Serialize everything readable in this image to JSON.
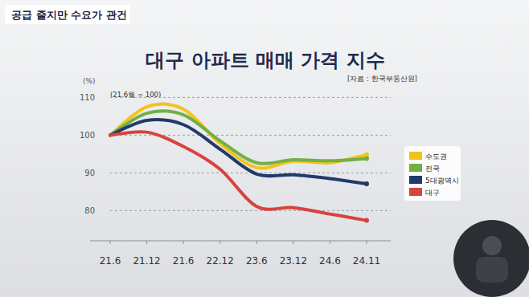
{
  "header": {
    "banner": "공급 줄지만 수요가 관건"
  },
  "chart_data": {
    "type": "line",
    "title": "대구 아파트 매매 가격 지수",
    "source": "[자료 : 한국부동산원]",
    "y_label": "(%)",
    "annotation": "(21.6월 = 100)",
    "categories": [
      "21.6",
      "21.12",
      "21.6",
      "22.12",
      "23.6",
      "23.12",
      "24.6",
      "24.11"
    ],
    "series": [
      {
        "name": "수도권",
        "color": "#f3c31c",
        "values": [
          100,
          107.5,
          106.9,
          97.8,
          91.4,
          93.1,
          92.7,
          94.8
        ]
      },
      {
        "name": "전국",
        "color": "#72b045",
        "values": [
          100,
          105.8,
          105.4,
          98.5,
          92.7,
          93.5,
          93.2,
          93.8
        ]
      },
      {
        "name": "5대광역시",
        "color": "#223a6a",
        "values": [
          100,
          103.9,
          102.8,
          96.3,
          89.7,
          89.5,
          88.5,
          87.1
        ]
      },
      {
        "name": "대구",
        "color": "#d7433d",
        "values": [
          100,
          100.8,
          97.0,
          91.0,
          81.1,
          80.8,
          79.1,
          77.4
        ]
      }
    ],
    "ylim": [
      72,
      112
    ],
    "yticks": [
      80,
      90,
      100,
      110
    ],
    "grid": true,
    "legend": "right"
  }
}
